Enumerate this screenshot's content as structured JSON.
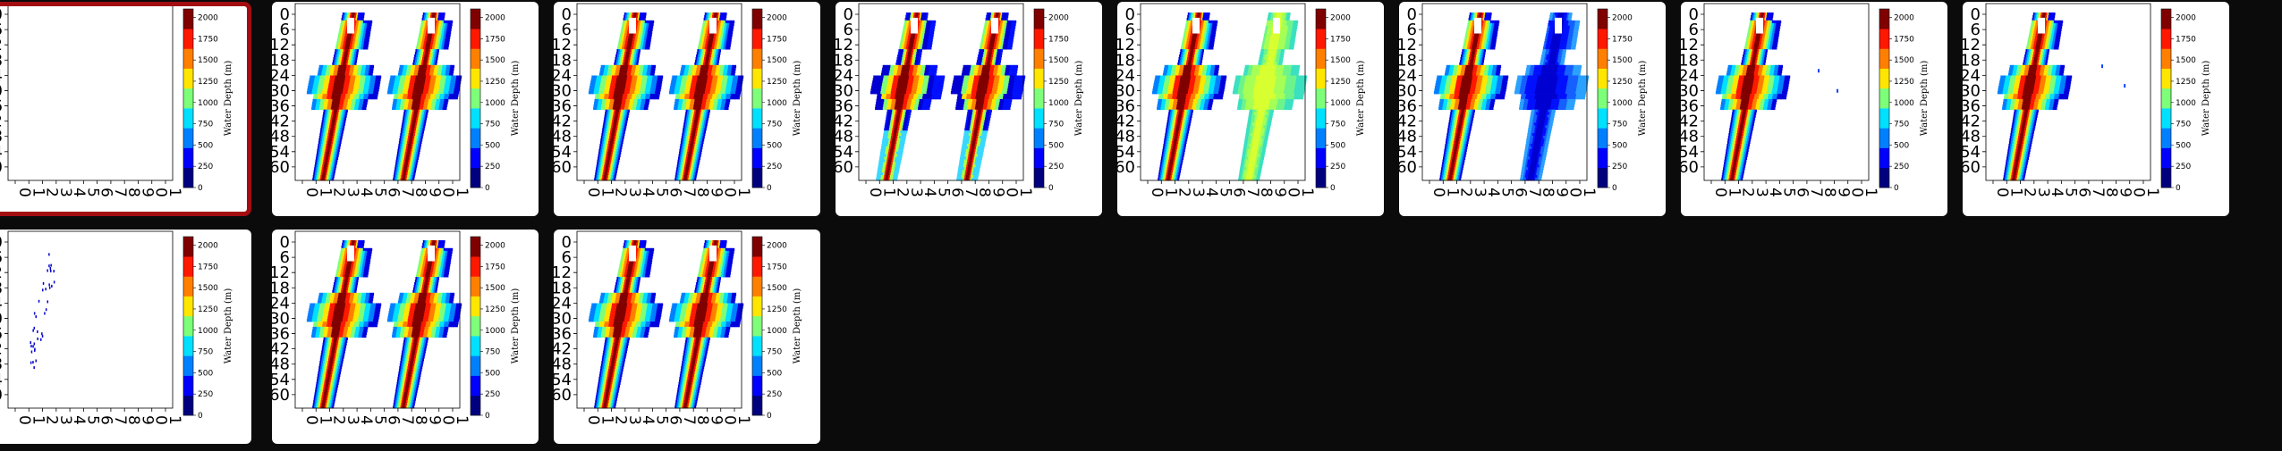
{
  "gallery": {
    "selected_index": 0,
    "y_ticks": [
      "0",
      "6",
      "12",
      "18",
      "24",
      "30",
      "36",
      "42",
      "48",
      "54",
      "60"
    ],
    "x_ticks": [
      "0",
      "1",
      "2",
      "3",
      "4",
      "5",
      "6",
      "7",
      "8",
      "9",
      "0",
      "1"
    ],
    "colorbar": {
      "label": "Water Depth (m)",
      "ticks": [
        "0",
        "250",
        "500",
        "750",
        "1000",
        "1250",
        "1500",
        "1750",
        "2000"
      ],
      "max": 2100,
      "colors": [
        "#00007f",
        "#0000ff",
        "#0080ff",
        "#00e0ff",
        "#7dff7a",
        "#ffe600",
        "#ff8000",
        "#ff1800",
        "#800000"
      ]
    },
    "thumbnails": [
      {
        "id": 1,
        "kind": "empty"
      },
      {
        "id": 2,
        "kind": "double",
        "variant": "full"
      },
      {
        "id": 3,
        "kind": "double",
        "variant": "full"
      },
      {
        "id": 4,
        "kind": "double",
        "variant": "green"
      },
      {
        "id": 5,
        "kind": "double",
        "variant": "green-only"
      },
      {
        "id": 6,
        "kind": "double",
        "variant": "blue-only"
      },
      {
        "id": 7,
        "kind": "single",
        "variant": "dots"
      },
      {
        "id": 8,
        "kind": "single",
        "variant": "dots"
      },
      {
        "id": 9,
        "kind": "scatter"
      },
      {
        "id": 10,
        "kind": "double",
        "variant": "full"
      },
      {
        "id": 11,
        "kind": "double",
        "variant": "full"
      }
    ]
  }
}
